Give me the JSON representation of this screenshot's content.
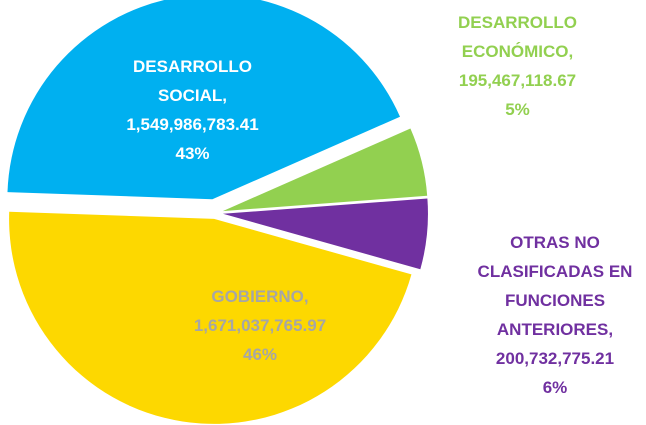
{
  "chart_data": {
    "type": "pie",
    "categories": [
      "DESARROLLO SOCIAL,",
      "DESARROLLO ECONÓMICO,",
      "OTRAS NO CLASIFICADAS EN FUNCIONES ANTERIORES,",
      "GOBIERNO,"
    ],
    "values": [
      1549986783.41,
      195467118.67,
      200732775.21,
      1671037765.97
    ],
    "value_labels": [
      "1,549,986,783.41",
      "195,467,118.67",
      "200,732,775.21",
      "1,671,037,765.97"
    ],
    "percents": [
      43,
      5,
      6,
      46
    ],
    "percent_labels": [
      "43%",
      "5%",
      "6%",
      "46%"
    ],
    "colors": [
      "#00b0f0",
      "#92d050",
      "#7030a0",
      "#fdd800"
    ],
    "label_colors": [
      "#ffffff",
      "#92d050",
      "#7030a0",
      "#a6a6a6"
    ]
  }
}
